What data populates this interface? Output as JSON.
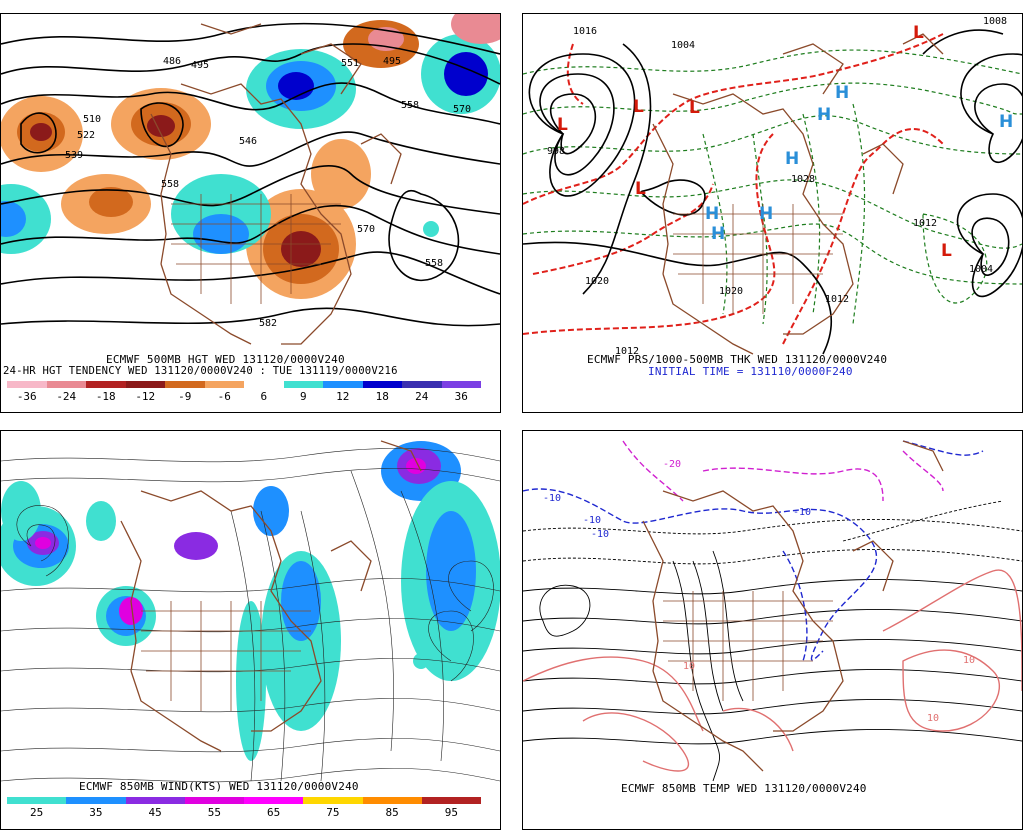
{
  "panels": {
    "top_left": {
      "caption_line1": "ECMWF 500MB HGT WED 131120/0000V240",
      "caption_line2": "24-HR HGT TENDENCY WED 131120/0000V240 : TUE 131119/0000V216",
      "contour_labels": [
        "486",
        "495",
        "510",
        "522",
        "539",
        "546",
        "558",
        "570",
        "582",
        "551",
        "495",
        "558",
        "570",
        "558"
      ],
      "colorbar": {
        "ticks": [
          "-36",
          "-24",
          "-18",
          "-12",
          "-9",
          "-6",
          "6",
          "9",
          "12",
          "18",
          "24",
          "36"
        ],
        "colors": [
          "#f7b8c8",
          "#e98a93",
          "#b22222",
          "#8b1a1a",
          "#d2691e",
          "#f4a460",
          "#ffffff",
          "#40e0d0",
          "#1e90ff",
          "#0000cd",
          "#3a2fb0",
          "#7b3fe4"
        ]
      }
    },
    "top_right": {
      "caption_line1": "ECMWF PRS/1000-500MB THK WED 131120/0000V240",
      "caption_line2": "INITIAL TIME = 131110/0000F240",
      "pressure_labels": [
        "1016",
        "1004",
        "998",
        "1020",
        "1028",
        "1012",
        "1004",
        "1008",
        "1012",
        "1020"
      ],
      "symbols": {
        "low": "L",
        "high": "H"
      }
    },
    "bottom_left": {
      "caption_line1": "ECMWF 850MB WIND(KTS) WED 131120/0000V240",
      "colorbar": {
        "ticks": [
          "25",
          "35",
          "45",
          "55",
          "65",
          "75",
          "85",
          "95"
        ],
        "colors": [
          "#40e0d0",
          "#1e90ff",
          "#8a2be2",
          "#e000e0",
          "#ff00ff",
          "#ffd700",
          "#ff8c00",
          "#b22222"
        ]
      }
    },
    "bottom_right": {
      "caption_line1": "ECMWF 850MB TEMP WED 131120/0000V240",
      "temp_labels": [
        "-20",
        "-10",
        "-10",
        "-10",
        "10",
        "10",
        "10",
        "-10"
      ]
    }
  },
  "colors": {
    "coast": "#8b4a2b",
    "contour": "#000000",
    "pressure_red": "#e0201a",
    "thickness_green": "#1e7d1e",
    "temp_blue": "#1f28d0",
    "temp_magenta": "#d020d0",
    "temp_pink": "#e07070"
  }
}
